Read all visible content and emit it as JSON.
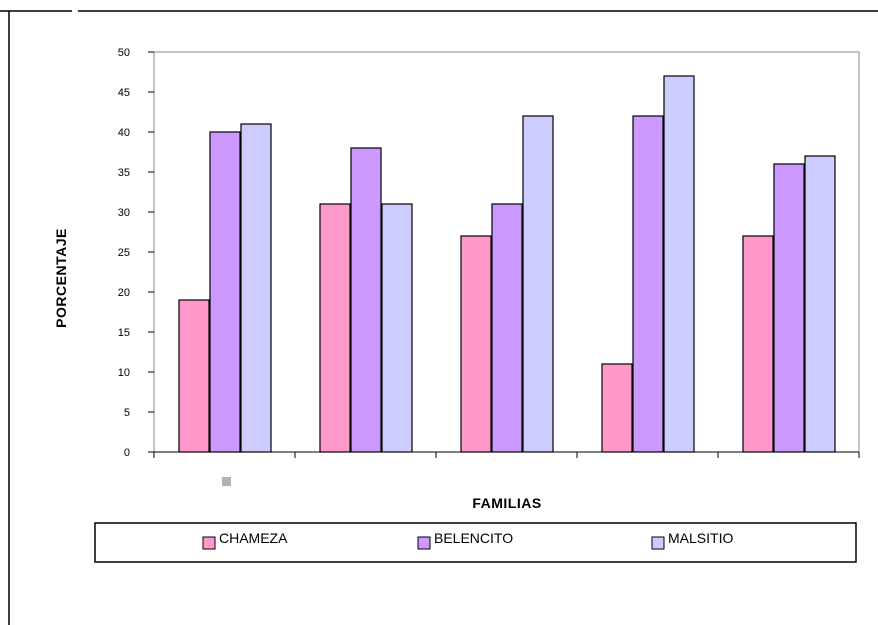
{
  "chart_data": {
    "type": "bar",
    "title": "",
    "xlabel": "FAMILIAS",
    "ylabel": "PORCENTAJE",
    "ylim": [
      0,
      50
    ],
    "yticks": [
      0,
      5,
      10,
      15,
      20,
      25,
      30,
      35,
      40,
      45,
      50
    ],
    "categories": [
      "",
      "",
      "",
      "",
      ""
    ],
    "series": [
      {
        "name": "CHAMEZA",
        "color": "#ff99cc",
        "values": [
          19,
          31,
          27,
          11,
          27
        ]
      },
      {
        "name": "BELENCITO",
        "color": "#cc99ff",
        "values": [
          40,
          38,
          31,
          42,
          36
        ]
      },
      {
        "name": "MALSITIO",
        "color": "#ccccff",
        "values": [
          41,
          31,
          42,
          47,
          37
        ]
      }
    ],
    "grid": false,
    "legend_position": "bottom"
  }
}
